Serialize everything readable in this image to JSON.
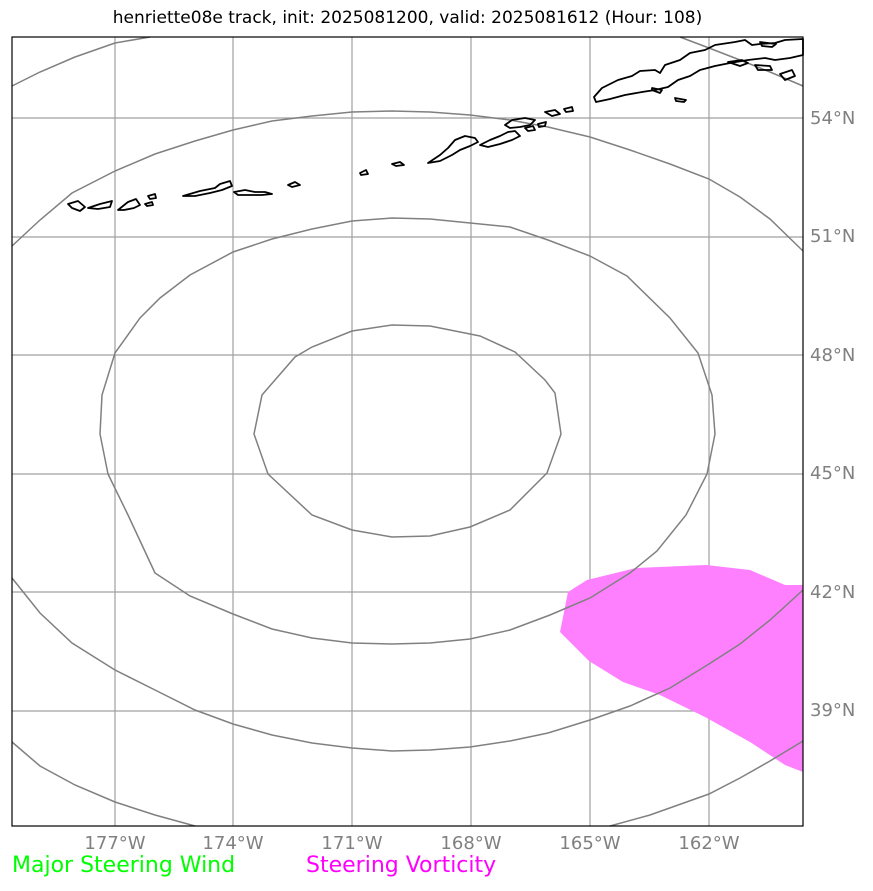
{
  "title": "henriette08e track, init: 2025081200, valid: 2025081612 (Hour: 108)",
  "lat_labels": [
    "54°N",
    "51°N",
    "48°N",
    "45°N",
    "42°N",
    "39°N"
  ],
  "lon_labels": [
    "177°W",
    "174°W",
    "171°W",
    "168°W",
    "165°W",
    "162°W"
  ],
  "legend": {
    "wind": {
      "label": "Major Steering Wind",
      "color": "#00ff00"
    },
    "vorticity": {
      "label": "Steering Vorticity",
      "color": "#ff00ff"
    }
  },
  "colors": {
    "grid": "#a0a0a0",
    "contour": "#808080",
    "coast": "#000000",
    "vorticity_fill": "#ff80ff"
  }
}
